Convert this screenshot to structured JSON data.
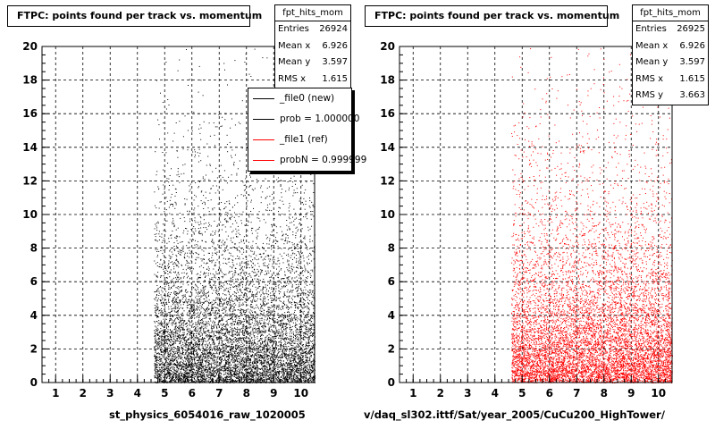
{
  "chart_data": [
    {
      "type": "scatter",
      "title": "FTPC: points found per track vs. momentum",
      "xlabel": "st_physics_6054016_raw_1020005",
      "ylabel": "",
      "xlim": [
        0.5,
        10.5
      ],
      "ylim": [
        0,
        20
      ],
      "xticks": [
        1,
        2,
        3,
        4,
        5,
        6,
        7,
        8,
        9,
        10
      ],
      "yticks": [
        0,
        2,
        4,
        6,
        8,
        10,
        12,
        14,
        16,
        18,
        20
      ],
      "grid": true,
      "marker_color": "#000000",
      "x_data_min": 4.6,
      "stats": {
        "name": "fpt_hits_mom",
        "rows": [
          {
            "label": "Entries",
            "value": "26924"
          },
          {
            "label": "Mean x",
            "value": "6.926"
          },
          {
            "label": "Mean y",
            "value": "3.597"
          },
          {
            "label": "RMS x",
            "value": "1.615"
          }
        ]
      },
      "legend": {
        "placement": "top-right",
        "entries": [
          {
            "label": "_file0 (new)",
            "color": "#000000"
          },
          {
            "label": "prob = 1.000000",
            "color": "#000000"
          },
          {
            "label": "_file1 (ref)",
            "color": "#ff0000"
          },
          {
            "label": "probN = 0.999999",
            "color": "#ff0000"
          }
        ]
      }
    },
    {
      "type": "scatter",
      "title": "FTPC: points found per track vs. momentum",
      "xlabel": "v/daq_sl302.ittf/Sat/year_2005/CuCu200_HighTower/",
      "ylabel": "",
      "xlim": [
        0.5,
        10.5
      ],
      "ylim": [
        0,
        20
      ],
      "xticks": [
        1,
        2,
        3,
        4,
        5,
        6,
        7,
        8,
        9,
        10
      ],
      "yticks": [
        0,
        2,
        4,
        6,
        8,
        10,
        12,
        14,
        16,
        18,
        20
      ],
      "grid": true,
      "marker_color": "#ff0000",
      "x_data_min": 4.6,
      "stats": {
        "name": "fpt_hits_mom",
        "rows": [
          {
            "label": "Entries",
            "value": "26925"
          },
          {
            "label": "Mean x",
            "value": "6.926"
          },
          {
            "label": "Mean y",
            "value": "3.597"
          },
          {
            "label": "RMS x",
            "value": "1.615"
          },
          {
            "label": "RMS y",
            "value": "3.663"
          }
        ]
      }
    }
  ]
}
